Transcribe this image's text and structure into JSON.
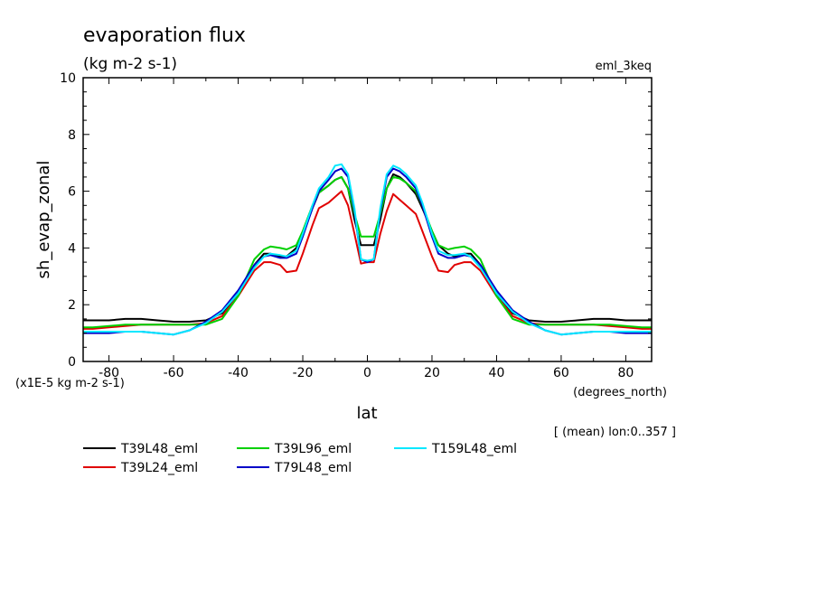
{
  "chart_data": {
    "type": "line",
    "title": "evaporation flux",
    "units_label": "(kg m-2 s-1)",
    "experiment": "eml_3keq",
    "ylabel": "sh_evap_zonal",
    "xlabel": "lat",
    "x_units": "(degrees_north)",
    "y_scale_note": "(x1E-5 kg m-2 s-1)",
    "mean_note": "[ (mean) lon:0..357 ]",
    "xlim": [
      -88,
      88
    ],
    "ylim": [
      0,
      10
    ],
    "x_ticks": [
      -80,
      -60,
      -40,
      -20,
      0,
      20,
      40,
      60,
      80
    ],
    "x_tick_labels": [
      "-80",
      "-60",
      "-40",
      "-20",
      "0",
      "20",
      "40",
      "60",
      "80"
    ],
    "y_ticks": [
      0,
      2,
      4,
      6,
      8,
      10
    ],
    "y_tick_labels": [
      "0",
      "2",
      "4",
      "6",
      "8",
      "10"
    ],
    "x": [
      -88,
      -85,
      -80,
      -75,
      -70,
      -65,
      -60,
      -55,
      -50,
      -45,
      -40,
      -35,
      -32,
      -30,
      -27,
      -25,
      -22,
      -20,
      -17,
      -15,
      -12,
      -10,
      -8,
      -6,
      -4,
      -2,
      0,
      2,
      4,
      6,
      8,
      10,
      12,
      15,
      17,
      20,
      22,
      25,
      27,
      30,
      32,
      35,
      40,
      45,
      50,
      55,
      60,
      65,
      70,
      75,
      80,
      85,
      88
    ],
    "series": [
      {
        "name": "T39L48_eml",
        "color": "#000000",
        "values": [
          1.45,
          1.45,
          1.45,
          1.5,
          1.5,
          1.45,
          1.4,
          1.4,
          1.45,
          1.7,
          2.4,
          3.4,
          3.8,
          3.8,
          3.7,
          3.7,
          4.0,
          4.5,
          5.4,
          5.95,
          6.2,
          6.4,
          6.5,
          6.1,
          5.0,
          4.1,
          4.1,
          4.1,
          5.0,
          6.1,
          6.6,
          6.5,
          6.3,
          5.9,
          5.4,
          4.6,
          4.1,
          3.8,
          3.7,
          3.8,
          3.8,
          3.4,
          2.4,
          1.7,
          1.45,
          1.4,
          1.4,
          1.45,
          1.5,
          1.5,
          1.45,
          1.45,
          1.45
        ]
      },
      {
        "name": "T39L24_eml",
        "color": "#e00000",
        "values": [
          1.15,
          1.15,
          1.2,
          1.25,
          1.3,
          1.3,
          1.3,
          1.3,
          1.35,
          1.6,
          2.3,
          3.2,
          3.5,
          3.5,
          3.4,
          3.15,
          3.2,
          3.8,
          4.8,
          5.4,
          5.6,
          5.8,
          6.0,
          5.5,
          4.5,
          3.45,
          3.5,
          3.5,
          4.5,
          5.3,
          5.9,
          5.7,
          5.5,
          5.2,
          4.6,
          3.7,
          3.2,
          3.15,
          3.4,
          3.5,
          3.5,
          3.2,
          2.3,
          1.6,
          1.35,
          1.3,
          1.3,
          1.3,
          1.3,
          1.25,
          1.2,
          1.15,
          1.15
        ]
      },
      {
        "name": "T39L96_eml",
        "color": "#00d000",
        "values": [
          1.2,
          1.2,
          1.25,
          1.3,
          1.3,
          1.3,
          1.3,
          1.3,
          1.3,
          1.5,
          2.3,
          3.6,
          3.95,
          4.05,
          4.0,
          3.95,
          4.1,
          4.6,
          5.5,
          5.95,
          6.2,
          6.4,
          6.5,
          6.1,
          5.2,
          4.4,
          4.4,
          4.4,
          5.2,
          6.1,
          6.5,
          6.45,
          6.3,
          6.0,
          5.5,
          4.6,
          4.1,
          3.95,
          4.0,
          4.05,
          3.95,
          3.6,
          2.3,
          1.5,
          1.3,
          1.3,
          1.3,
          1.3,
          1.3,
          1.3,
          1.25,
          1.2,
          1.2
        ]
      },
      {
        "name": "T79L48_eml",
        "color": "#0000c8",
        "values": [
          1.0,
          1.0,
          1.0,
          1.05,
          1.05,
          1.0,
          0.95,
          1.1,
          1.4,
          1.8,
          2.5,
          3.4,
          3.7,
          3.75,
          3.65,
          3.65,
          3.8,
          4.4,
          5.4,
          6.0,
          6.4,
          6.7,
          6.8,
          6.5,
          5.3,
          3.6,
          3.5,
          3.6,
          5.3,
          6.5,
          6.8,
          6.7,
          6.5,
          6.1,
          5.5,
          4.4,
          3.8,
          3.65,
          3.65,
          3.75,
          3.7,
          3.4,
          2.5,
          1.8,
          1.4,
          1.1,
          0.95,
          1.0,
          1.05,
          1.05,
          1.0,
          1.0,
          1.0
        ]
      },
      {
        "name": "T159L48_eml",
        "color": "#00e8ff",
        "values": [
          1.05,
          1.05,
          1.05,
          1.05,
          1.05,
          1.0,
          0.95,
          1.1,
          1.35,
          1.75,
          2.4,
          3.3,
          3.7,
          3.8,
          3.75,
          3.7,
          3.9,
          4.5,
          5.5,
          6.1,
          6.5,
          6.9,
          6.95,
          6.6,
          5.4,
          3.6,
          3.55,
          3.6,
          5.4,
          6.6,
          6.9,
          6.8,
          6.6,
          6.2,
          5.6,
          4.5,
          3.9,
          3.75,
          3.75,
          3.8,
          3.7,
          3.3,
          2.4,
          1.75,
          1.35,
          1.1,
          0.95,
          1.0,
          1.05,
          1.05,
          1.05,
          1.05,
          1.05
        ]
      }
    ],
    "legend_placement": "bottom-left"
  }
}
